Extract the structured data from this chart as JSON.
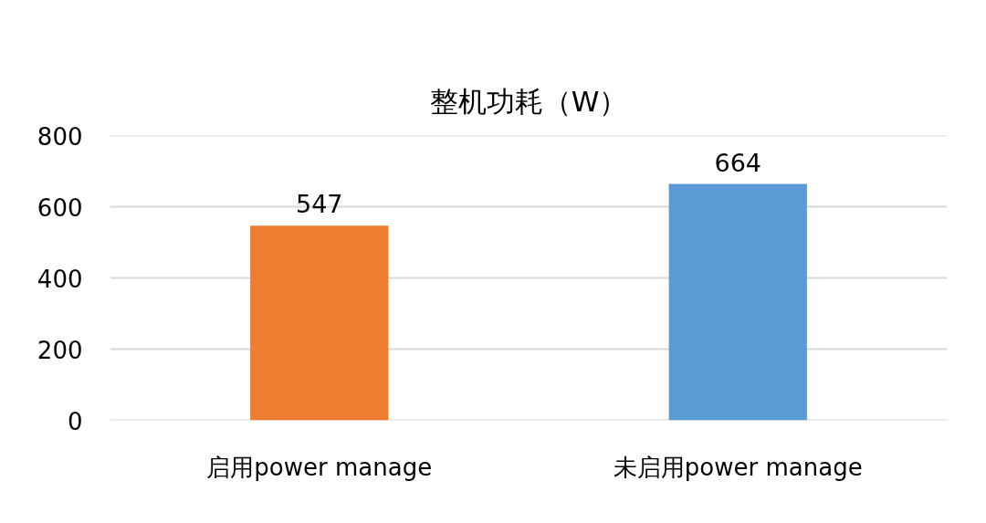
{
  "chart_data": {
    "type": "bar",
    "title": "整机功耗（W）",
    "categories": [
      "启用power manage",
      "未启用power manage"
    ],
    "values": [
      547,
      664
    ],
    "colors": [
      "#ed7d31",
      "#5b9bd5"
    ],
    "ylim": [
      0,
      800
    ],
    "yticks": [
      0,
      200,
      400,
      600,
      800
    ],
    "grid": "y",
    "data_labels": true
  }
}
